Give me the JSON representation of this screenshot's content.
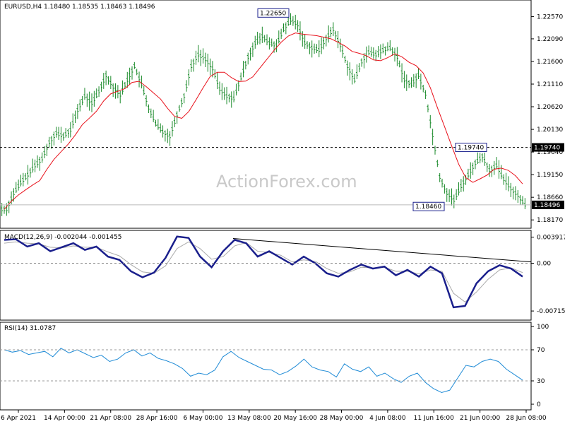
{
  "chart_data": [
    {
      "panel": "price",
      "type": "bar",
      "title": "EURUSD,H4  1.18480  1.18535  1.18463  1.18496",
      "y_ticks": [
        "1.22570",
        "1.22090",
        "1.21600",
        "1.21110",
        "1.20620",
        "1.20130",
        "1.19640",
        "1.19150",
        "1.18660",
        "1.18170"
      ],
      "ylim": [
        1.1802,
        1.229
      ],
      "annotations": [
        {
          "text": "1.22650",
          "value": 1.2265
        },
        {
          "text": "1.19740",
          "value": 1.1974
        },
        {
          "text": "1.18460",
          "value": 1.1846
        }
      ],
      "level_line": {
        "text": "1.19740",
        "value": 1.1974
      },
      "current_price": {
        "text": "1.18496",
        "value": 1.18496
      },
      "ma_color": "#e8101a",
      "bar_color": "#1a8a2a",
      "approx_closes": [
        1.184,
        1.1875,
        1.1898,
        1.1915,
        1.1935,
        1.195,
        1.1985,
        1.2005,
        1.1998,
        1.2012,
        1.2055,
        1.2085,
        1.207,
        1.2095,
        1.213,
        1.2105,
        1.2088,
        1.212,
        1.215,
        1.211,
        1.206,
        1.2025,
        1.2008,
        1.1998,
        1.2045,
        1.2085,
        1.215,
        1.2175,
        1.2165,
        1.2145,
        1.21,
        1.2085,
        1.208,
        1.2125,
        1.217,
        1.22,
        1.2215,
        1.22,
        1.2195,
        1.223,
        1.225,
        1.224,
        1.22,
        1.219,
        1.2185,
        1.221,
        1.223,
        1.2195,
        1.215,
        1.212,
        1.216,
        1.218,
        1.2175,
        1.2185,
        1.219,
        1.217,
        1.212,
        1.211,
        1.213,
        1.209,
        1.2,
        1.191,
        1.1875,
        1.186,
        1.189,
        1.1915,
        1.194,
        1.1955,
        1.1925,
        1.1935,
        1.1905,
        1.1885,
        1.187,
        1.185
      ]
    },
    {
      "panel": "macd",
      "type": "line",
      "title": "MACD(12,26,9) -0.002044 -0.001455",
      "y_ticks": [
        "0.003917",
        "0.00",
        "-0.007152"
      ],
      "ylim": [
        -0.0082,
        0.0045
      ],
      "series": [
        {
          "name": "MACD",
          "color": "#1a1f8c",
          "values": [
            0.0035,
            0.0036,
            0.0025,
            0.003,
            0.0018,
            0.0024,
            0.003,
            0.002,
            0.0025,
            0.001,
            0.0005,
            -0.0012,
            -0.0021,
            -0.0014,
            0.0008,
            0.004,
            0.0038,
            0.001,
            -0.0006,
            0.0018,
            0.0035,
            0.003,
            0.001,
            0.0018,
            0.0008,
            -0.0002,
            0.001,
            0.0,
            -0.0015,
            -0.002,
            -0.001,
            -0.0002,
            -0.0008,
            -0.0005,
            -0.0018,
            -0.001,
            -0.002,
            -0.0005,
            -0.0015,
            -0.0066,
            -0.0064,
            -0.003,
            -0.0012,
            -0.0003,
            -0.0008,
            -0.002
          ]
        },
        {
          "name": "Signal",
          "color": "#a9a9a9",
          "values": [
            0.003,
            0.0032,
            0.003,
            0.0029,
            0.0024,
            0.0023,
            0.0026,
            0.0024,
            0.0024,
            0.0017,
            0.0011,
            -0.0002,
            -0.0013,
            -0.0015,
            -0.0004,
            0.0022,
            0.0032,
            0.0022,
            0.0006,
            0.001,
            0.0026,
            0.0031,
            0.0018,
            0.0016,
            0.0012,
            0.0002,
            0.0005,
            0.0003,
            -0.0008,
            -0.0015,
            -0.0013,
            -0.0006,
            -0.0007,
            -0.0006,
            -0.0012,
            -0.0012,
            -0.0016,
            -0.001,
            -0.0012,
            -0.0045,
            -0.0058,
            -0.0043,
            -0.0024,
            -0.001,
            -0.0007,
            -0.0014
          ]
        }
      ]
    },
    {
      "panel": "rsi",
      "type": "line",
      "title": "RSI(14) 31.0787",
      "y_ticks": [
        "100",
        "70",
        "30",
        "0"
      ],
      "ylim": [
        0,
        100
      ],
      "series": [
        {
          "name": "RSI",
          "color": "#1f8bd6",
          "values": [
            70,
            67,
            69,
            64,
            66,
            68,
            61,
            72,
            66,
            70,
            65,
            60,
            63,
            55,
            58,
            66,
            70,
            62,
            66,
            59,
            56,
            52,
            46,
            36,
            40,
            38,
            44,
            61,
            68,
            60,
            55,
            50,
            45,
            44,
            38,
            42,
            49,
            58,
            48,
            44,
            42,
            35,
            52,
            45,
            42,
            48,
            36,
            40,
            33,
            28,
            36,
            40,
            28,
            20,
            15,
            18,
            34,
            50,
            48,
            55,
            58,
            55,
            45,
            38,
            31
          ]
        }
      ]
    }
  ],
  "x_labels": [
    "6 Apr 2021",
    "14 Apr 00:00",
    "21 Apr 08:00",
    "28 Apr 16:00",
    "6 May 00:00",
    "13 May 08:00",
    "20 May 16:00",
    "28 May 00:00",
    "4 Jun 08:00",
    "11 Jun 16:00",
    "21 Jun 00:00",
    "28 Jun 08:00"
  ],
  "watermark": "ActionForex.com"
}
